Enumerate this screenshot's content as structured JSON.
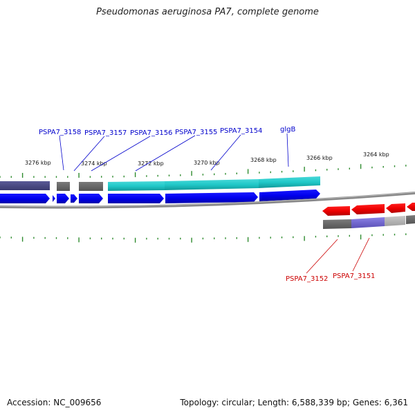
{
  "title": "Pseudomonas aeruginosa PA7, complete genome",
  "footer": {
    "accession": "Accession: NC_009656",
    "topology": "Topology: circular; Length: 6,588,339 bp; Genes: 6,361"
  },
  "colors": {
    "forward_cds": "#0000ee",
    "reverse_cds": "#ee0000",
    "tick": "#2e8b2e",
    "label_forward": "#0000cc",
    "label_reverse": "#cc0000",
    "backbone": "#888888"
  },
  "tick_labels": [
    "3276 kbp",
    "3274 kbp",
    "3272 kbp",
    "3270 kbp",
    "3268 kbp",
    "3266 kbp",
    "3264 kbp"
  ],
  "genes": {
    "forward": [
      "PSPA7_3158",
      "PSPA7_3157",
      "PSPA7_3156",
      "PSPA7_3155",
      "PSPA7_3154",
      "glgB"
    ],
    "reverse": [
      "PSPA7_3152",
      "PSPA7_3151"
    ]
  }
}
